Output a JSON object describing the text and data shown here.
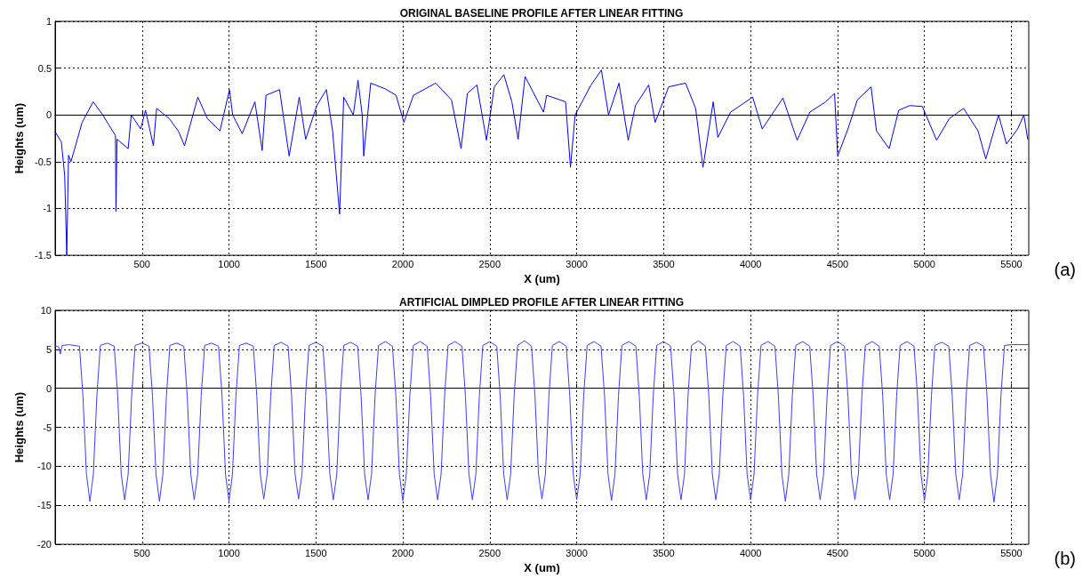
{
  "chart_data": [
    {
      "type": "line",
      "title": "ORIGINAL BASELINE PROFILE AFTER LINEAR FITTING",
      "xlabel": "X (um)",
      "ylabel": "Heights (um)",
      "annotations": [
        "(a)"
      ],
      "xlim": [
        0,
        5600
      ],
      "xticks": [
        500,
        1000,
        1500,
        2000,
        2500,
        3000,
        3500,
        4000,
        4500,
        5000,
        5500
      ],
      "ylim": [
        -1.5,
        1
      ],
      "yticks": [
        -1.5,
        -1,
        -0.5,
        0,
        0.5,
        1
      ],
      "grid": true,
      "marker": "none",
      "line_style": "solid",
      "series": [
        {
          "color": "#0000ff",
          "x": [
            0,
            36,
            55,
            67,
            77,
            91,
            128,
            155,
            219,
            274,
            310,
            347,
            350,
            356,
            420,
            438,
            492,
            520,
            565,
            584,
            657,
            711,
            744,
            803,
            821,
            876,
            948,
            1003,
            1021,
            1076,
            1149,
            1191,
            1213,
            1291,
            1346,
            1404,
            1441,
            1505,
            1560,
            1596,
            1636,
            1660,
            1715,
            1742,
            1766,
            1775,
            1815,
            1897,
            1961,
            2006,
            2061,
            2189,
            2280,
            2335,
            2371,
            2426,
            2481,
            2526,
            2581,
            2627,
            2663,
            2703,
            2809,
            2827,
            2936,
            2964,
            2991,
            3082,
            3142,
            3183,
            3243,
            3296,
            3338,
            3414,
            3451,
            3529,
            3626,
            3684,
            3726,
            3785,
            3812,
            3885,
            4012,
            4067,
            4186,
            4268,
            4341,
            4432,
            4483,
            4501,
            4560,
            4614,
            4693,
            4724,
            4797,
            4852,
            4916,
            4988,
            5070,
            5143,
            5225,
            5308,
            5353,
            5426,
            5472,
            5536,
            5572,
            5594
          ],
          "values": [
            -0.18,
            -0.29,
            -0.65,
            -1.5,
            -0.43,
            -0.5,
            -0.26,
            -0.08,
            0.14,
            0,
            -0.11,
            -0.22,
            -1.03,
            -0.26,
            -0.36,
            0,
            -0.15,
            0.05,
            -0.33,
            0.07,
            -0.04,
            -0.18,
            -0.33,
            0.07,
            0.19,
            -0.04,
            -0.17,
            0.27,
            0,
            -0.2,
            0.14,
            -0.38,
            0.21,
            0.27,
            -0.44,
            0.19,
            -0.26,
            0.1,
            0.27,
            -0.17,
            -1.06,
            0.19,
            0,
            0.37,
            0,
            -0.44,
            0.34,
            0.28,
            0.21,
            -0.08,
            0.21,
            0.34,
            0.16,
            -0.36,
            0.23,
            0.32,
            -0.27,
            0.3,
            0.43,
            0.14,
            -0.26,
            0.41,
            0.03,
            0.21,
            0.14,
            -0.56,
            0,
            0.32,
            0.48,
            0,
            0.34,
            -0.27,
            0.1,
            0.32,
            -0.08,
            0.3,
            0.34,
            0.07,
            -0.56,
            0.14,
            -0.24,
            0.03,
            0.19,
            -0.15,
            0.18,
            -0.27,
            0.03,
            0.14,
            0.23,
            -0.44,
            -0.15,
            0.16,
            0.3,
            -0.17,
            -0.36,
            0.05,
            0.1,
            0.09,
            -0.27,
            -0.04,
            0.07,
            -0.17,
            -0.47,
            0,
            -0.31,
            -0.15,
            0,
            -0.26
          ]
        }
      ]
    },
    {
      "type": "line",
      "title": "ARTIFICIAL DIMPLED PROFILE AFTER LINEAR FITTING",
      "xlabel": "X (um)",
      "ylabel": "Heights (um)",
      "annotations": [
        "(b)"
      ],
      "xlim": [
        0,
        5600
      ],
      "xticks": [
        500,
        1000,
        1500,
        2000,
        2500,
        3000,
        3500,
        4000,
        4500,
        5000,
        5500
      ],
      "ylim": [
        -20,
        10
      ],
      "yticks": [
        -20,
        -15,
        -10,
        -5,
        0,
        5,
        10
      ],
      "grid": true,
      "marker": "none",
      "line_style": "solid",
      "series": [
        {
          "color": "#3d3dff",
          "x": [
            0,
            20,
            30,
            40,
            80,
            140,
            160,
            180,
            200,
            220,
            240,
            260,
            300,
            340,
            360,
            380,
            400,
            420,
            440,
            460,
            500,
            540,
            560,
            580,
            600,
            620,
            640,
            660,
            700,
            740,
            760,
            780,
            800,
            820,
            840,
            860,
            900,
            940,
            960,
            980,
            1000,
            1020,
            1040,
            1060,
            1100,
            1140,
            1160,
            1180,
            1200,
            1220,
            1240,
            1260,
            1300,
            1340,
            1360,
            1380,
            1400,
            1420,
            1440,
            1460,
            1500,
            1540,
            1560,
            1580,
            1600,
            1620,
            1640,
            1660,
            1700,
            1740,
            1760,
            1780,
            1800,
            1820,
            1840,
            1860,
            1900,
            1940,
            1960,
            1980,
            2000,
            2020,
            2040,
            2060,
            2100,
            2140,
            2160,
            2180,
            2200,
            2220,
            2240,
            2260,
            2300,
            2340,
            2360,
            2380,
            2400,
            2420,
            2440,
            2460,
            2500,
            2540,
            2560,
            2580,
            2600,
            2620,
            2640,
            2660,
            2700,
            2740,
            2760,
            2780,
            2800,
            2820,
            2840,
            2860,
            2900,
            2940,
            2960,
            2980,
            3000,
            3020,
            3040,
            3060,
            3100,
            3140,
            3160,
            3180,
            3200,
            3220,
            3240,
            3260,
            3300,
            3340,
            3360,
            3380,
            3400,
            3420,
            3440,
            3460,
            3500,
            3540,
            3560,
            3580,
            3600,
            3620,
            3640,
            3660,
            3700,
            3740,
            3760,
            3780,
            3800,
            3820,
            3840,
            3860,
            3900,
            3940,
            3960,
            3980,
            4000,
            4020,
            4040,
            4060,
            4100,
            4140,
            4160,
            4180,
            4200,
            4220,
            4240,
            4260,
            4300,
            4340,
            4360,
            4380,
            4400,
            4420,
            4440,
            4460,
            4500,
            4540,
            4560,
            4580,
            4600,
            4620,
            4640,
            4660,
            4700,
            4740,
            4760,
            4780,
            4800,
            4820,
            4840,
            4860,
            4900,
            4940,
            4960,
            4980,
            5000,
            5020,
            5040,
            5060,
            5100,
            5140,
            5160,
            5180,
            5200,
            5220,
            5240,
            5260,
            5300,
            5340,
            5360,
            5380,
            5400,
            5420,
            5440,
            5460,
            5500,
            5600
          ],
          "values": [
            5.5,
            5.3,
            4.4,
            5.5,
            5.6,
            5.4,
            -1,
            -11,
            -14.5,
            -11,
            -1,
            5.5,
            5.8,
            5.4,
            -1,
            -11,
            -14.3,
            -11,
            -1,
            5.5,
            5.8,
            5.4,
            -1,
            -11,
            -14.5,
            -11,
            -1,
            5.5,
            5.8,
            5.4,
            -1,
            -11,
            -14.3,
            -11,
            -1,
            5.5,
            5.8,
            5.4,
            -1,
            -11,
            -14.5,
            -11,
            -1,
            5.5,
            5.8,
            5.4,
            -1,
            -11,
            -14.2,
            -11,
            -1,
            5.5,
            5.9,
            5.4,
            -1,
            -11,
            -14.2,
            -11,
            -1,
            5.5,
            5.9,
            5.4,
            -1,
            -11,
            -14.3,
            -11,
            -1,
            5.5,
            5.9,
            5.4,
            -1,
            -11,
            -14.3,
            -11,
            -1,
            5.5,
            6,
            5.4,
            -1,
            -11,
            -14.4,
            -11,
            -1,
            5.5,
            6,
            5.4,
            -1,
            -11,
            -14.3,
            -11,
            -1,
            5.5,
            6,
            5.4,
            -1,
            -11,
            -14.3,
            -11,
            -1,
            5.5,
            6,
            5.4,
            -1,
            -11,
            -14.3,
            -11,
            -1,
            5.5,
            6.1,
            5.4,
            -1,
            -11,
            -14.2,
            -11,
            -1,
            5.5,
            6,
            5.4,
            -1,
            -11,
            -14.3,
            -11,
            -1,
            5.5,
            6,
            5.4,
            -1,
            -11,
            -14.4,
            -11,
            -1,
            5.5,
            6,
            5.4,
            -1,
            -11,
            -14.3,
            -11,
            -1,
            5.5,
            6,
            5.4,
            -1,
            -11,
            -14.3,
            -11,
            -1,
            5.5,
            6.1,
            5.4,
            -1,
            -11,
            -14.3,
            -11,
            -1,
            5.5,
            6,
            5.4,
            -1,
            -11,
            -14.3,
            -11,
            -1,
            5.5,
            6,
            5.4,
            -1,
            -11,
            -14.5,
            -11,
            -1,
            5.5,
            6,
            5.4,
            -1,
            -11,
            -14.3,
            -11,
            -1,
            5.5,
            6,
            5.4,
            -1,
            -11,
            -14.3,
            -11,
            -1,
            5.5,
            6,
            5.4,
            -1,
            -11,
            -14.3,
            -11,
            -1,
            5.5,
            6,
            5.4,
            -1,
            -11,
            -14.4,
            -11,
            -1,
            5.5,
            5.9,
            5.4,
            -1,
            -11,
            -14.3,
            -11,
            -1,
            5.5,
            5.9,
            5.4,
            -1,
            -11,
            -14.6,
            -11,
            -1,
            5.5,
            5.6,
            5.6
          ]
        }
      ]
    }
  ]
}
